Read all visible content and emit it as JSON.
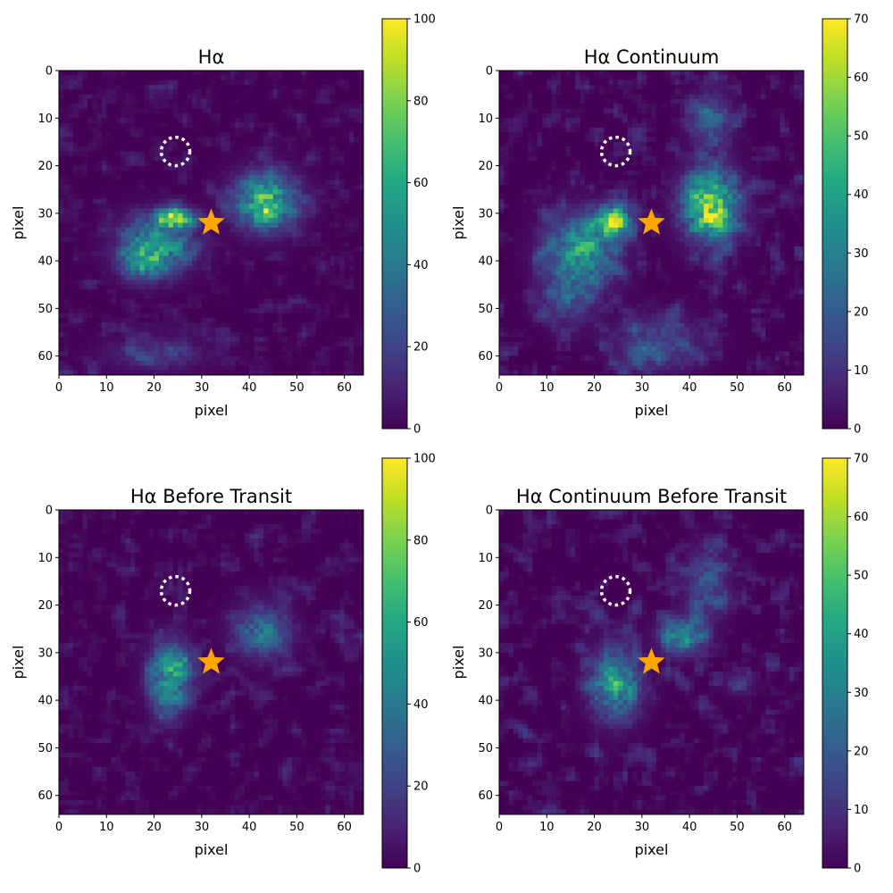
{
  "colormap": "viridis",
  "accent_colors": {
    "star": "#FFA500",
    "circle": "#FFFFFF"
  },
  "chart_data": [
    {
      "type": "heatmap",
      "title": "Hα",
      "xlabel": "pixel",
      "ylabel": "pixel",
      "xlim": [
        0,
        64
      ],
      "ylim": [
        64,
        0
      ],
      "xticks": [
        0,
        10,
        20,
        30,
        40,
        50,
        60
      ],
      "yticks": [
        0,
        10,
        20,
        30,
        40,
        50,
        60
      ],
      "grid_size": [
        64,
        64
      ],
      "colorbar": {
        "min": 0,
        "max": 100,
        "ticks": [
          0,
          20,
          40,
          60,
          80,
          100
        ]
      },
      "star_marker": {
        "x": 32,
        "y": 32
      },
      "dotted_circle": {
        "x": 24.5,
        "y": 17,
        "r": 3
      },
      "emission_regions": [
        {
          "x": 24,
          "y": 30.5,
          "sx": 2.5,
          "sy": 1.2,
          "peak": 100
        },
        {
          "x": 20,
          "y": 36,
          "sx": 5,
          "sy": 4,
          "peak": 55
        },
        {
          "x": 17,
          "y": 40,
          "sx": 3,
          "sy": 2.5,
          "peak": 40
        },
        {
          "x": 43,
          "y": 27,
          "sx": 4.5,
          "sy": 4,
          "peak": 70
        },
        {
          "x": 43,
          "y": 29.5,
          "sx": 1.5,
          "sy": 1.5,
          "peak": 30
        },
        {
          "x": 20,
          "y": 59,
          "sx": 7,
          "sy": 2.5,
          "peak": 18
        }
      ],
      "noise_level": 18
    },
    {
      "type": "heatmap",
      "title": "Hα Continuum",
      "xlabel": "pixel",
      "ylabel": "pixel",
      "xlim": [
        0,
        64
      ],
      "ylim": [
        64,
        0
      ],
      "xticks": [
        0,
        10,
        20,
        30,
        40,
        50,
        60
      ],
      "yticks": [
        0,
        10,
        20,
        30,
        40,
        50,
        60
      ],
      "grid_size": [
        64,
        64
      ],
      "colorbar": {
        "min": 0,
        "max": 70,
        "ticks": [
          0,
          10,
          20,
          30,
          40,
          50,
          60,
          70
        ]
      },
      "star_marker": {
        "x": 32,
        "y": 32
      },
      "dotted_circle": {
        "x": 24.5,
        "y": 17,
        "r": 3
      },
      "emission_regions": [
        {
          "x": 23.5,
          "y": 31,
          "sx": 2.5,
          "sy": 2,
          "peak": 60
        },
        {
          "x": 17,
          "y": 37,
          "sx": 5,
          "sy": 5,
          "peak": 40
        },
        {
          "x": 14,
          "y": 47,
          "sx": 4,
          "sy": 4,
          "peak": 18
        },
        {
          "x": 44,
          "y": 28,
          "sx": 4,
          "sy": 5,
          "peak": 58
        },
        {
          "x": 45,
          "y": 30,
          "sx": 1.5,
          "sy": 1.5,
          "peak": 15
        },
        {
          "x": 44,
          "y": 10,
          "sx": 3,
          "sy": 4,
          "peak": 22
        },
        {
          "x": 33,
          "y": 57,
          "sx": 6,
          "sy": 4,
          "peak": 18
        }
      ],
      "noise_level": 16
    },
    {
      "type": "heatmap",
      "title": "Hα Before Transit",
      "xlabel": "pixel",
      "ylabel": "pixel",
      "xlim": [
        0,
        64
      ],
      "ylim": [
        64,
        0
      ],
      "xticks": [
        0,
        10,
        20,
        30,
        40,
        50,
        60
      ],
      "yticks": [
        0,
        10,
        20,
        30,
        40,
        50,
        60
      ],
      "grid_size": [
        64,
        64
      ],
      "colorbar": {
        "min": 0,
        "max": 100,
        "ticks": [
          0,
          20,
          40,
          60,
          80,
          100
        ]
      },
      "star_marker": {
        "x": 32,
        "y": 32
      },
      "dotted_circle": {
        "x": 24.5,
        "y": 17,
        "r": 3
      },
      "emission_regions": [
        {
          "x": 23,
          "y": 34,
          "sx": 3,
          "sy": 4.5,
          "peak": 60
        },
        {
          "x": 25.5,
          "y": 31.5,
          "sx": 1,
          "sy": 1,
          "peak": 25
        },
        {
          "x": 42,
          "y": 25,
          "sx": 4,
          "sy": 4,
          "peak": 35
        },
        {
          "x": 22,
          "y": 42,
          "sx": 2,
          "sy": 2,
          "peak": 20
        }
      ],
      "noise_level": 20
    },
    {
      "type": "heatmap",
      "title": "Hα Continuum Before Transit",
      "xlabel": "pixel",
      "ylabel": "pixel",
      "xlim": [
        0,
        64
      ],
      "ylim": [
        64,
        0
      ],
      "xticks": [
        0,
        10,
        20,
        30,
        40,
        50,
        60
      ],
      "yticks": [
        0,
        10,
        20,
        30,
        40,
        50,
        60
      ],
      "grid_size": [
        64,
        64
      ],
      "colorbar": {
        "min": 0,
        "max": 70,
        "ticks": [
          0,
          10,
          20,
          30,
          40,
          50,
          60,
          70
        ]
      },
      "star_marker": {
        "x": 32,
        "y": 32
      },
      "dotted_circle": {
        "x": 24.5,
        "y": 17,
        "r": 3
      },
      "emission_regions": [
        {
          "x": 24,
          "y": 36,
          "sx": 3.5,
          "sy": 5,
          "peak": 40
        },
        {
          "x": 38,
          "y": 26,
          "sx": 3,
          "sy": 2.5,
          "peak": 38
        },
        {
          "x": 43,
          "y": 15,
          "sx": 3,
          "sy": 5,
          "peak": 20
        },
        {
          "x": 50,
          "y": 36,
          "sx": 2,
          "sy": 1.5,
          "peak": 15
        }
      ],
      "noise_level": 16
    }
  ]
}
